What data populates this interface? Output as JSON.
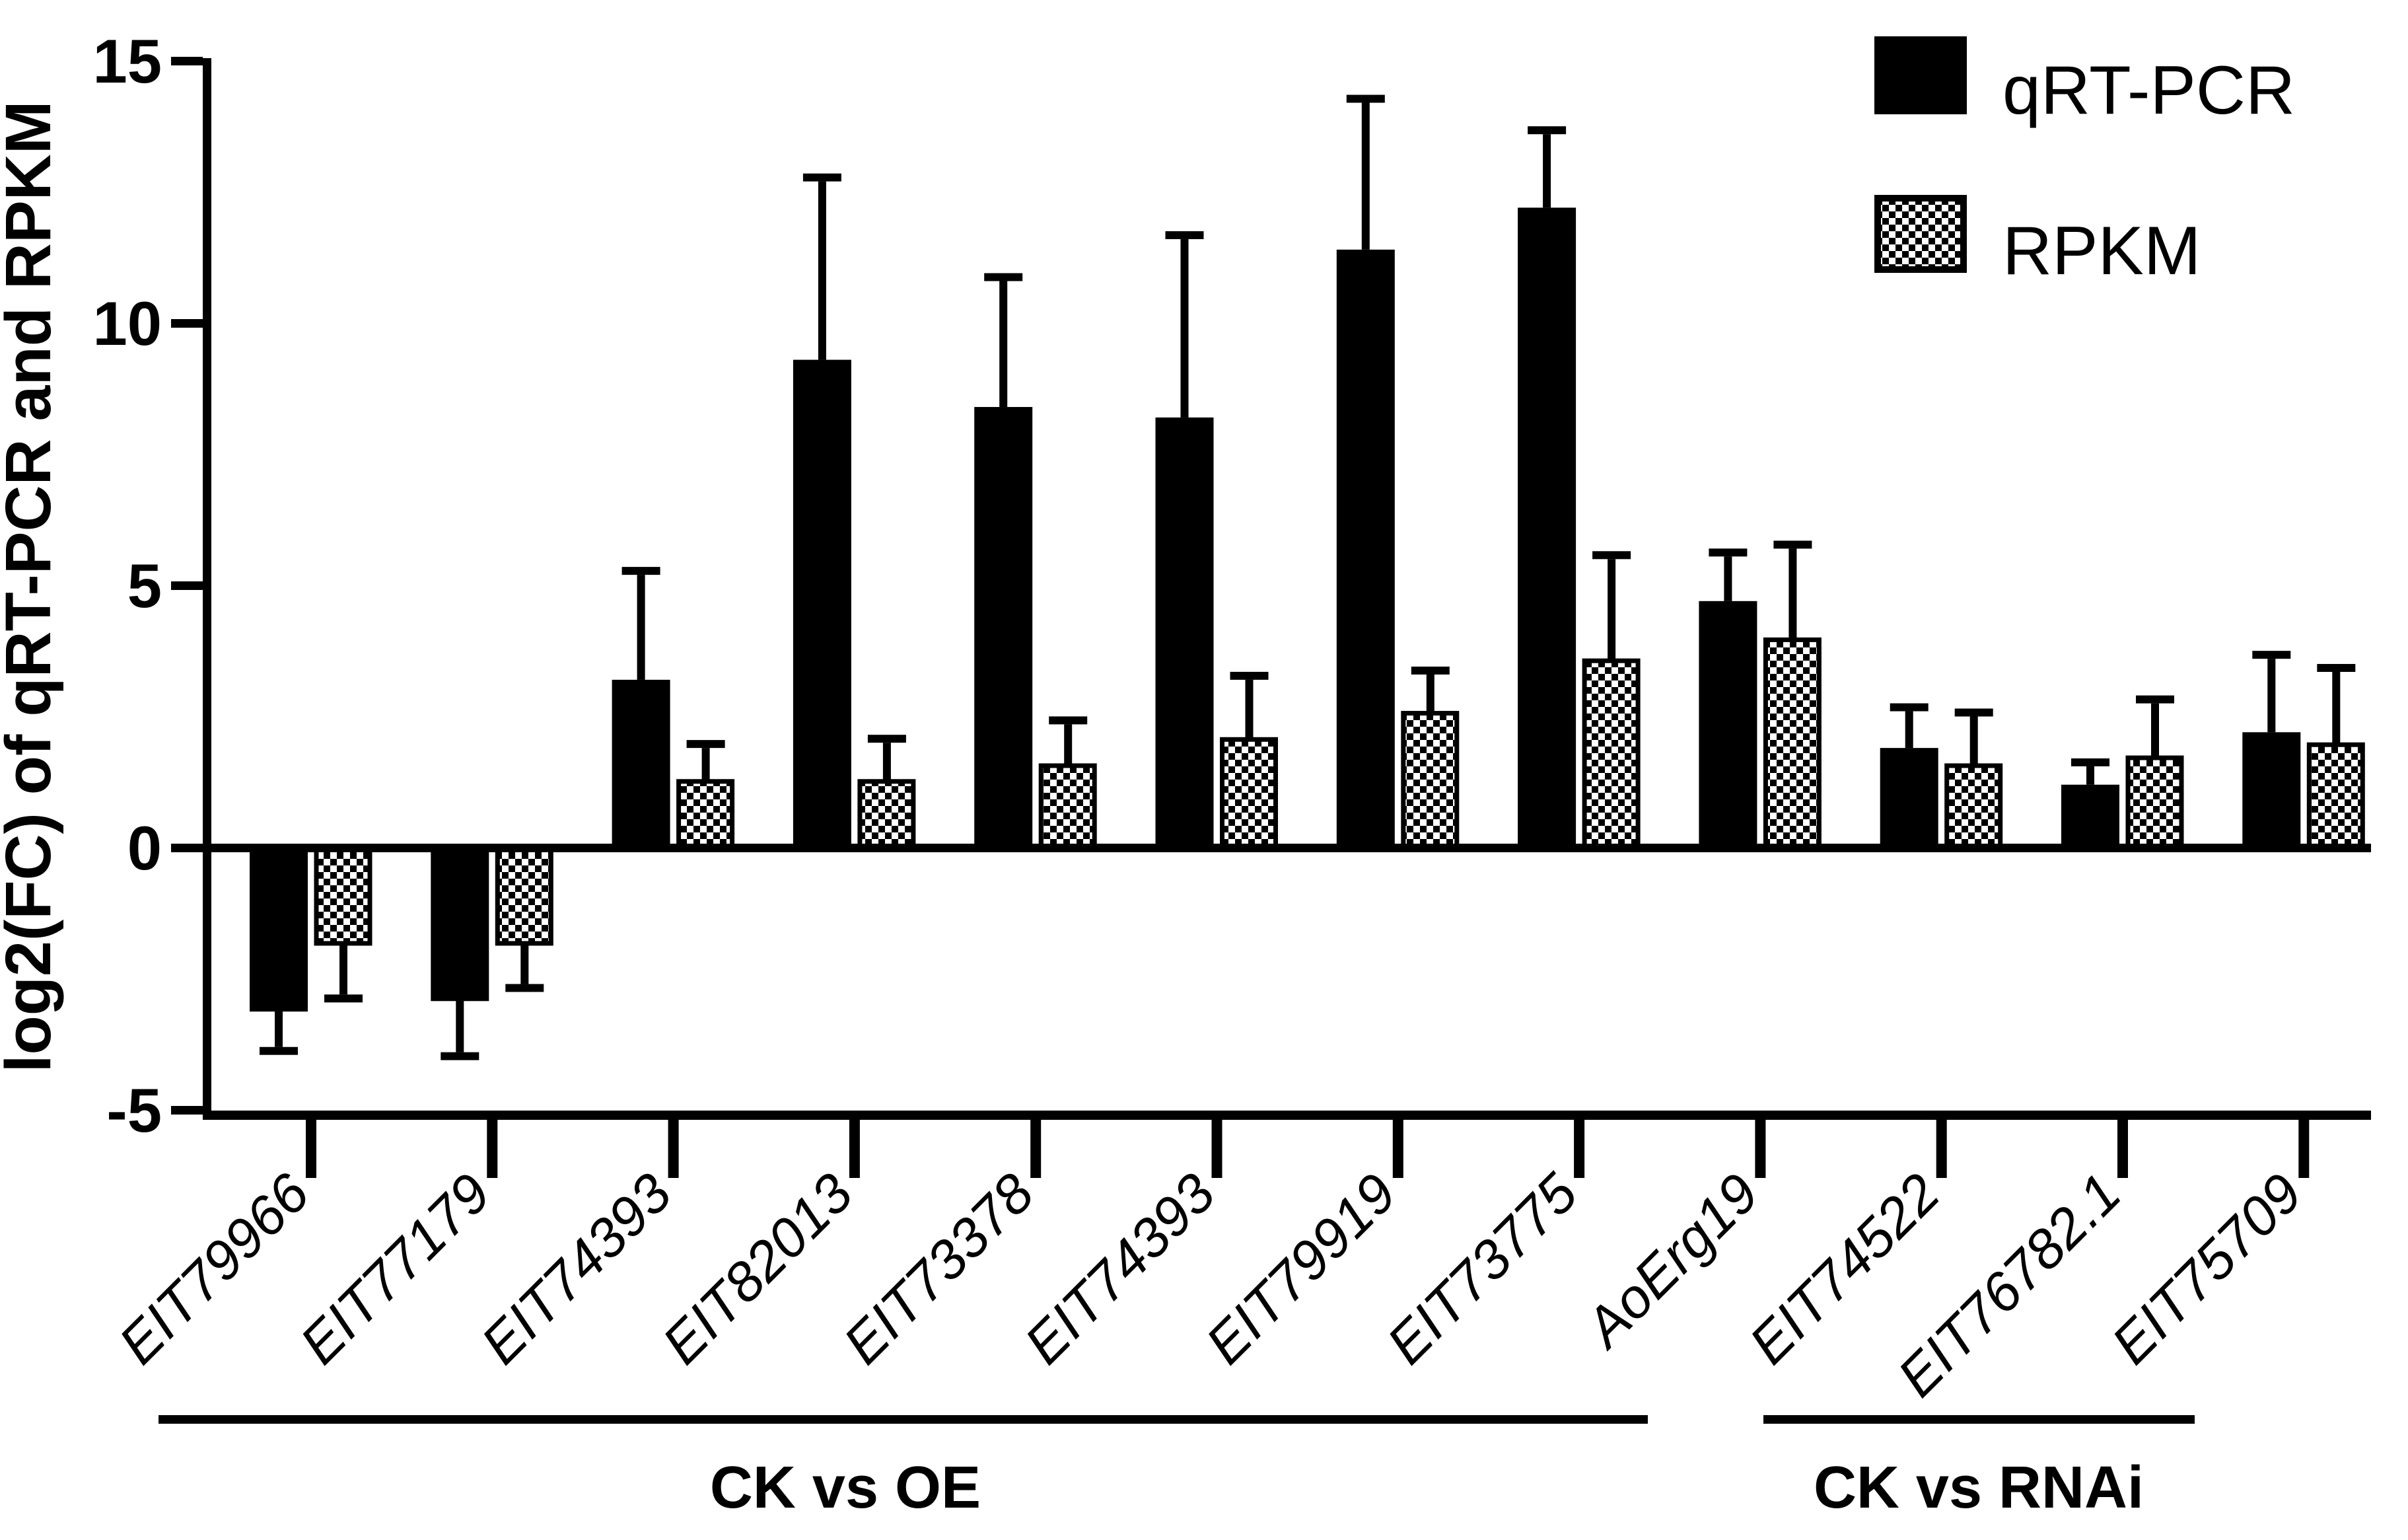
{
  "figure": {
    "background_color": "#ffffff",
    "ink_color": "#000000",
    "description": "Grouped bar chart comparing qRT-PCR and RPKM log2 fold-change values for 12 genes"
  },
  "legend": {
    "items": [
      {
        "label": "qRT-PCR",
        "swatch": "solid-black-square"
      },
      {
        "label": "RPKM",
        "swatch": "checkerboard-square"
      }
    ]
  },
  "y_axis": {
    "title": "log2(FC) of qRT-PCR and RPKM",
    "ticks": [
      "15",
      "10",
      "5",
      "0",
      "-5"
    ],
    "tick_values": [
      15,
      10,
      5,
      0,
      -5
    ],
    "range": [
      -5,
      15
    ]
  },
  "group_brackets": [
    {
      "label": "CK vs OE",
      "first_gene_index": 0,
      "last_gene_index": 7
    },
    {
      "label": "CK vs RNAi",
      "first_gene_index": 8,
      "last_gene_index": 11
    }
  ],
  "chart_data": {
    "type": "bar",
    "title": "",
    "xlabel": "",
    "ylabel": "log2(FC) of qRT-PCR and RPKM",
    "ylim": [
      -5,
      15
    ],
    "yticks": [
      15,
      10,
      5,
      0,
      -5
    ],
    "grid": false,
    "legend_position": "top-right",
    "error_bars": "one-sided, extending away from zero, with caps",
    "categories": [
      "EIT79966",
      "EIT77179",
      "EIT74393",
      "EIT82013",
      "EIT73378",
      "EIT74393",
      "EIT79919",
      "EIT73775",
      "AoErg19",
      "EIT74522",
      "EIT76782.1",
      "EIT75709"
    ],
    "series": [
      {
        "name": "qRT-PCR",
        "pattern": "solid",
        "color": "#000000",
        "values": [
          -3.1,
          -2.9,
          3.2,
          9.3,
          8.4,
          8.2,
          11.4,
          12.2,
          4.7,
          1.9,
          1.2,
          2.2
        ],
        "errors": [
          0.7,
          1.0,
          2.0,
          3.4,
          2.4,
          3.4,
          2.8,
          1.4,
          0.85,
          0.7,
          0.35,
          1.4
        ]
      },
      {
        "name": "RPKM",
        "pattern": "checkerboard",
        "color": "#000000",
        "values": [
          -1.8,
          -1.8,
          1.3,
          1.3,
          1.6,
          2.1,
          2.6,
          3.6,
          4.0,
          1.6,
          1.75,
          2.0
        ],
        "errors": [
          1.0,
          0.8,
          0.6,
          0.7,
          0.75,
          1.1,
          0.7,
          1.9,
          1.7,
          0.9,
          1.0,
          1.35
        ]
      }
    ],
    "group_annotations": [
      {
        "label": "CK vs OE",
        "covers": "EIT79966 through EIT73775"
      },
      {
        "label": "CK vs RNAi",
        "covers": "AoErg19 through EIT75709"
      }
    ]
  }
}
